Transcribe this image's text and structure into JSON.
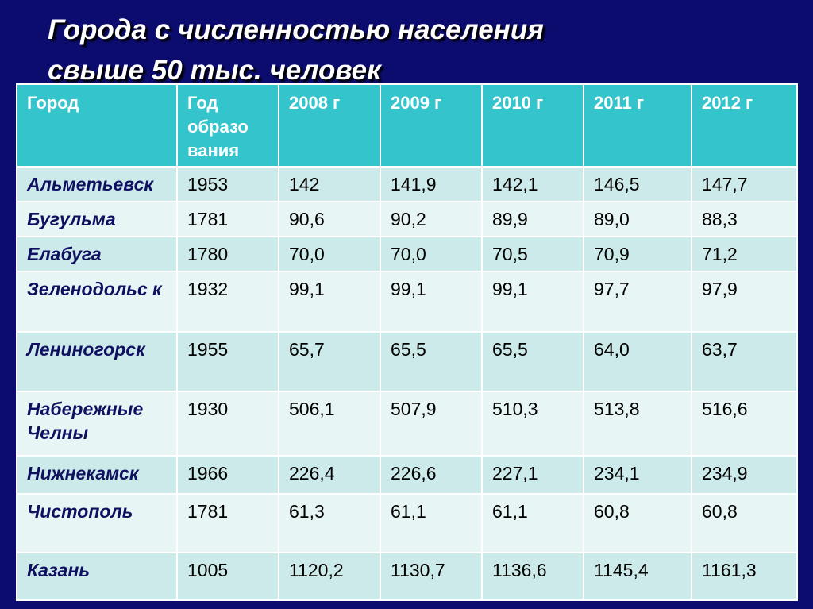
{
  "slide": {
    "title_line1": "Города с численностью населения",
    "title_line2": "свыше 50 тыс. человек"
  },
  "table": {
    "headers": [
      "Город",
      "Год образо вания",
      "2008 г",
      "2009 г",
      "2010 г",
      "2011 г",
      "2012 г"
    ],
    "rows": [
      [
        "Альметьевск",
        "1953",
        "142",
        "141,9",
        "142,1",
        "146,5",
        "147,7"
      ],
      [
        "Бугульма",
        "1781",
        "90,6",
        "90,2",
        "89,9",
        "89,0",
        "88,3"
      ],
      [
        "Елабуга",
        "1780",
        "70,0",
        "70,0",
        "70,5",
        "70,9",
        "71,2"
      ],
      [
        "Зеленодольс к",
        "1932",
        "99,1",
        "99,1",
        "99,1",
        "97,7",
        "97,9"
      ],
      [
        "Лениногорск",
        "1955",
        "65,7",
        "65,5",
        "65,5",
        "64,0",
        "63,7"
      ],
      [
        "Набережные Челны",
        "1930",
        "506,1",
        "507,9",
        "510,3",
        "513,8",
        "516,6"
      ],
      [
        "Нижнекамск",
        "1966",
        "226,4",
        "226,6",
        "227,1",
        "234,1",
        "234,9"
      ],
      [
        "Чистополь",
        "1781",
        "61,3",
        "61,1",
        "61,1",
        "60,8",
        "60,8"
      ],
      [
        "Казань",
        "1005",
        "1120,2",
        "1130,7",
        "1136,6",
        "1145,4",
        "1161,3"
      ]
    ]
  },
  "colors": {
    "background": "#0c0c6e",
    "header_fill": "#33c4cc",
    "row_fill_odd": "#cdeaea",
    "row_fill_even": "#e7f5f5",
    "city_text": "#101060"
  }
}
